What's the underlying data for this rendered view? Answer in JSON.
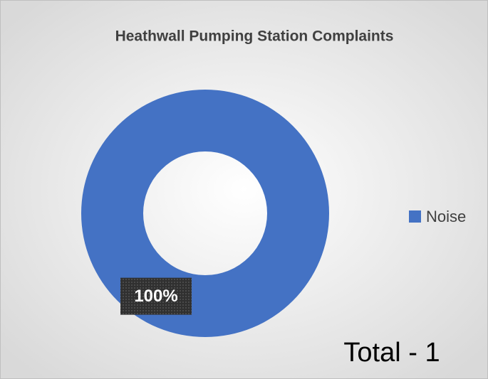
{
  "chart_data": {
    "type": "donut",
    "title": "Heathwall Pumping Station Complaints",
    "categories": [
      "Noise"
    ],
    "values": [
      100
    ],
    "value_labels": [
      "100%"
    ],
    "colors": [
      "#4472c4"
    ],
    "legend": "right",
    "annotation": "Total - 1"
  }
}
